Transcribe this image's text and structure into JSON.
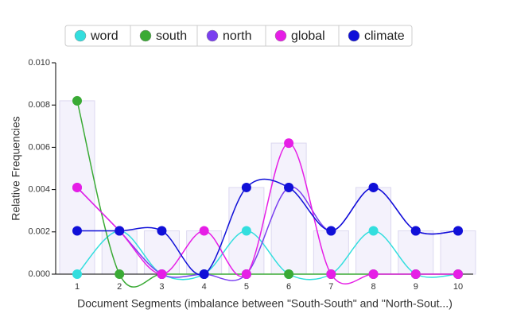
{
  "chart_data": {
    "type": "line",
    "x_label": "Document Segments (imbalance between \"South-South\" and \"North-Sout...)",
    "y_label": "Relative Frequencies",
    "categories": [
      "1",
      "2",
      "3",
      "4",
      "5",
      "6",
      "7",
      "8",
      "9",
      "10"
    ],
    "series": [
      {
        "name": "word",
        "color": "#33dede",
        "values": [
          0,
          0.00205,
          0,
          0,
          0.00205,
          0,
          0,
          0.00205,
          0,
          0
        ]
      },
      {
        "name": "south",
        "color": "#3aaa35",
        "values": [
          0.0082,
          0,
          0,
          0,
          0,
          0,
          0,
          0,
          0,
          0
        ]
      },
      {
        "name": "north",
        "color": "#7a3ff0",
        "values": [
          0.0041,
          0.00205,
          0,
          0,
          0,
          0.0041,
          0.00205,
          0.0041,
          0.00205,
          0.00205
        ]
      },
      {
        "name": "global",
        "color": "#e61ee6",
        "values": [
          0.0041,
          0.00205,
          0,
          0.00205,
          0,
          0.0062,
          0,
          0,
          0,
          0
        ]
      },
      {
        "name": "climate",
        "color": "#1010d8",
        "values": [
          0.00205,
          0.00205,
          0.00205,
          0,
          0.0041,
          0.0041,
          0.00205,
          0.0041,
          0.00205,
          0.00205
        ]
      }
    ],
    "ylim": [
      0,
      0.01
    ],
    "yticks": [
      {
        "value": 0,
        "label": "0.000"
      },
      {
        "value": 0.002,
        "label": "0.002"
      },
      {
        "value": 0.004,
        "label": "0.004"
      },
      {
        "value": 0.006,
        "label": "0.006"
      },
      {
        "value": 0.008,
        "label": "0.008"
      },
      {
        "value": 0.01,
        "label": "0.010"
      }
    ],
    "legend": "top"
  }
}
